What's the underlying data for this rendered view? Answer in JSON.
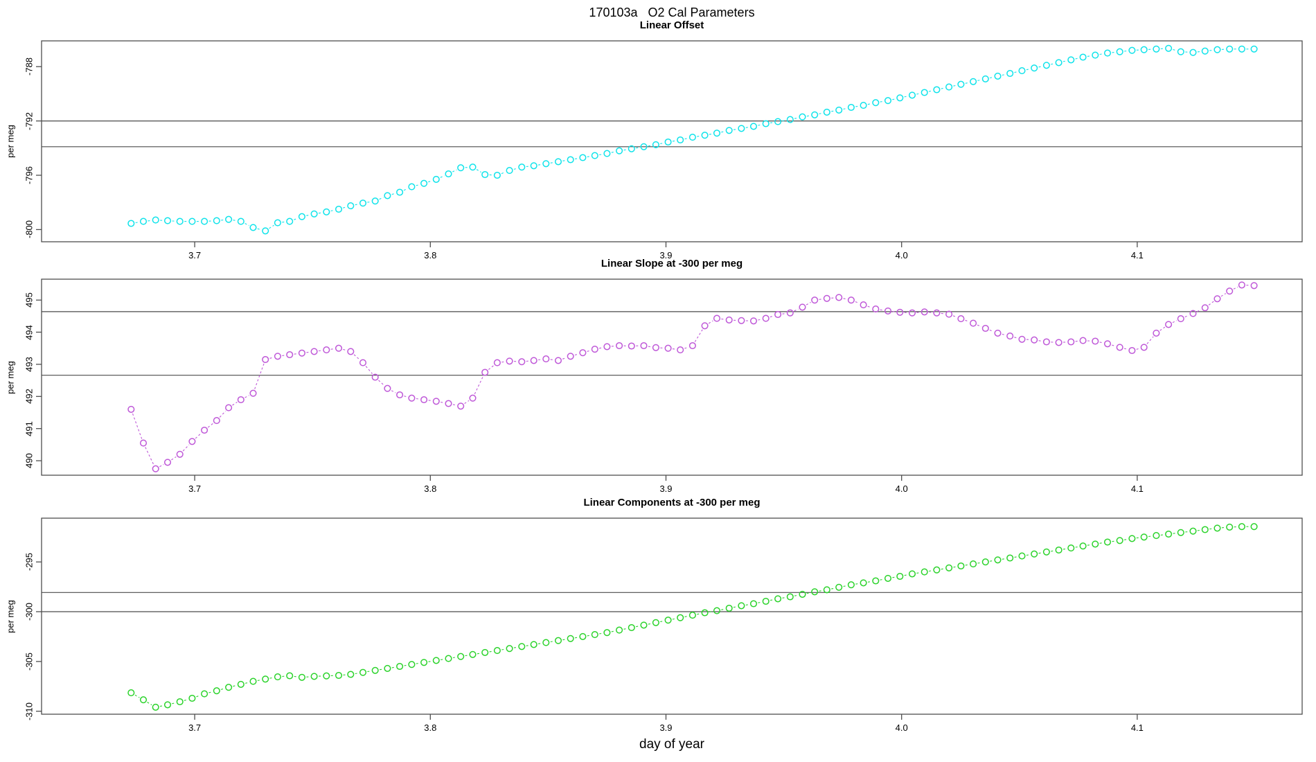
{
  "title": "170103a   O2 Cal Parameters",
  "colors": {
    "axis": "#4d4d4d",
    "ref_line": "#4a4a4a",
    "series_cyan": "#0fe3ea",
    "series_orchid": "#bf58d8",
    "series_green": "#2bd32b",
    "background": "#ffffff"
  },
  "chart_data": {
    "type": "scatter",
    "title": "170103a   O2 Cal Parameters",
    "xlabel": "day of year",
    "x_ticks": [
      3.7,
      3.8,
      3.9,
      4.0,
      4.1
    ],
    "x_range": [
      3.635,
      4.17
    ],
    "grid": false,
    "legend": "none",
    "marker": "open-circle",
    "line_style": "dashed",
    "x": [
      3.673,
      3.6782,
      3.6834,
      3.6885,
      3.6937,
      3.6989,
      3.7041,
      3.7093,
      3.7144,
      3.7196,
      3.7248,
      3.73,
      3.7352,
      3.7403,
      3.7455,
      3.7507,
      3.7559,
      3.7611,
      3.7662,
      3.7714,
      3.7766,
      3.7818,
      3.787,
      3.7921,
      3.7973,
      3.8025,
      3.8077,
      3.8129,
      3.818,
      3.8232,
      3.8284,
      3.8336,
      3.8388,
      3.8439,
      3.8491,
      3.8543,
      3.8595,
      3.8647,
      3.8698,
      3.875,
      3.8802,
      3.8854,
      3.8906,
      3.8957,
      3.9009,
      3.9061,
      3.9113,
      3.9165,
      3.9216,
      3.9268,
      3.932,
      3.9372,
      3.9424,
      3.9475,
      3.9527,
      3.9579,
      3.9631,
      3.9683,
      3.9734,
      3.9786,
      3.9838,
      3.989,
      3.9942,
      3.9993,
      4.0045,
      4.0097,
      4.0149,
      4.0201,
      4.0252,
      4.0304,
      4.0356,
      4.0408,
      4.046,
      4.0511,
      4.0563,
      4.0615,
      4.0667,
      4.0719,
      4.077,
      4.0822,
      4.0874,
      4.0926,
      4.0978,
      4.1029,
      4.1081,
      4.1133,
      4.1185,
      4.1237,
      4.1288,
      4.134,
      4.1392,
      4.1444,
      4.1496
    ],
    "panels": [
      {
        "title": "Linear Offset",
        "ylabel": "per meg",
        "color": "#0fe3ea",
        "y_ticks": [
          -788,
          -792,
          -796,
          -800
        ],
        "y_range": [
          -800.9,
          -786.1
        ],
        "ref_lines": [
          -792.0,
          -793.9
        ],
        "values": [
          -799.55,
          -799.4,
          -799.3,
          -799.35,
          -799.4,
          -799.4,
          -799.4,
          -799.35,
          -799.25,
          -799.4,
          -799.85,
          -800.1,
          -799.5,
          -799.4,
          -799.05,
          -798.85,
          -798.7,
          -798.5,
          -798.25,
          -798.05,
          -797.9,
          -797.5,
          -797.25,
          -796.85,
          -796.6,
          -796.3,
          -795.9,
          -795.45,
          -795.4,
          -795.95,
          -796.0,
          -795.65,
          -795.4,
          -795.3,
          -795.15,
          -795.0,
          -794.85,
          -794.7,
          -794.55,
          -794.4,
          -794.2,
          -794.05,
          -793.9,
          -793.75,
          -793.55,
          -793.4,
          -793.2,
          -793.05,
          -792.9,
          -792.7,
          -792.55,
          -792.4,
          -792.2,
          -792.05,
          -791.9,
          -791.7,
          -791.55,
          -791.35,
          -791.2,
          -791.0,
          -790.85,
          -790.65,
          -790.5,
          -790.3,
          -790.1,
          -789.9,
          -789.7,
          -789.5,
          -789.3,
          -789.1,
          -788.9,
          -788.7,
          -788.5,
          -788.3,
          -788.1,
          -787.9,
          -787.7,
          -787.5,
          -787.3,
          -787.15,
          -787.0,
          -786.9,
          -786.8,
          -786.75,
          -786.7,
          -786.65,
          -786.9,
          -786.95,
          -786.85,
          -786.75,
          -786.7,
          -786.7,
          -786.7
        ]
      },
      {
        "title": "Linear Slope at -300 per meg",
        "ylabel": "per meg",
        "color": "#bf58d8",
        "y_ticks": [
          490,
          491,
          492,
          493,
          494,
          495
        ],
        "y_range": [
          489.55,
          495.65
        ],
        "ref_lines": [
          494.64,
          492.66
        ],
        "values": [
          491.6,
          490.55,
          489.75,
          489.95,
          490.2,
          490.6,
          490.95,
          491.25,
          491.65,
          491.9,
          492.1,
          493.15,
          493.25,
          493.3,
          493.35,
          493.4,
          493.45,
          493.5,
          493.4,
          493.05,
          492.6,
          492.25,
          492.05,
          491.95,
          491.9,
          491.85,
          491.78,
          491.7,
          491.95,
          492.75,
          493.05,
          493.1,
          493.08,
          493.12,
          493.17,
          493.12,
          493.25,
          493.36,
          493.47,
          493.55,
          493.58,
          493.57,
          493.58,
          493.52,
          493.5,
          493.45,
          493.58,
          494.2,
          494.43,
          494.38,
          494.36,
          494.35,
          494.43,
          494.55,
          494.6,
          494.78,
          495.0,
          495.05,
          495.08,
          495.0,
          494.85,
          494.72,
          494.66,
          494.62,
          494.6,
          494.63,
          494.6,
          494.56,
          494.42,
          494.28,
          494.12,
          493.97,
          493.88,
          493.78,
          493.76,
          493.7,
          493.68,
          493.7,
          493.74,
          493.72,
          493.64,
          493.53,
          493.43,
          493.53,
          493.97,
          494.24,
          494.42,
          494.58,
          494.76,
          495.04,
          495.28,
          495.47,
          495.45
        ]
      },
      {
        "title": "Linear Components at -300 per meg",
        "ylabel": "per meg",
        "color": "#2bd32b",
        "y_ticks": [
          -295,
          -300,
          -305,
          -310
        ],
        "y_range": [
          -310.3,
          -290.6
        ],
        "ref_lines": [
          -298.07,
          -300.0
        ],
        "values": [
          -308.15,
          -308.85,
          -309.6,
          -309.35,
          -309.05,
          -308.7,
          -308.25,
          -307.95,
          -307.6,
          -307.3,
          -307.0,
          -306.77,
          -306.55,
          -306.44,
          -306.6,
          -306.5,
          -306.45,
          -306.4,
          -306.3,
          -306.1,
          -305.9,
          -305.7,
          -305.5,
          -305.3,
          -305.1,
          -304.9,
          -304.7,
          -304.5,
          -304.3,
          -304.1,
          -303.9,
          -303.7,
          -303.5,
          -303.3,
          -303.1,
          -302.9,
          -302.7,
          -302.5,
          -302.3,
          -302.1,
          -301.85,
          -301.6,
          -301.35,
          -301.1,
          -300.85,
          -300.6,
          -300.35,
          -300.1,
          -299.9,
          -299.65,
          -299.4,
          -299.2,
          -298.95,
          -298.7,
          -298.5,
          -298.25,
          -298.0,
          -297.8,
          -297.55,
          -297.3,
          -297.1,
          -296.9,
          -296.65,
          -296.45,
          -296.2,
          -296.0,
          -295.8,
          -295.6,
          -295.4,
          -295.2,
          -295.0,
          -294.8,
          -294.6,
          -294.4,
          -294.2,
          -294.0,
          -293.8,
          -293.6,
          -293.4,
          -293.2,
          -293.0,
          -292.85,
          -292.65,
          -292.5,
          -292.35,
          -292.2,
          -292.05,
          -291.9,
          -291.75,
          -291.6,
          -291.5,
          -291.45,
          -291.45
        ]
      }
    ]
  }
}
